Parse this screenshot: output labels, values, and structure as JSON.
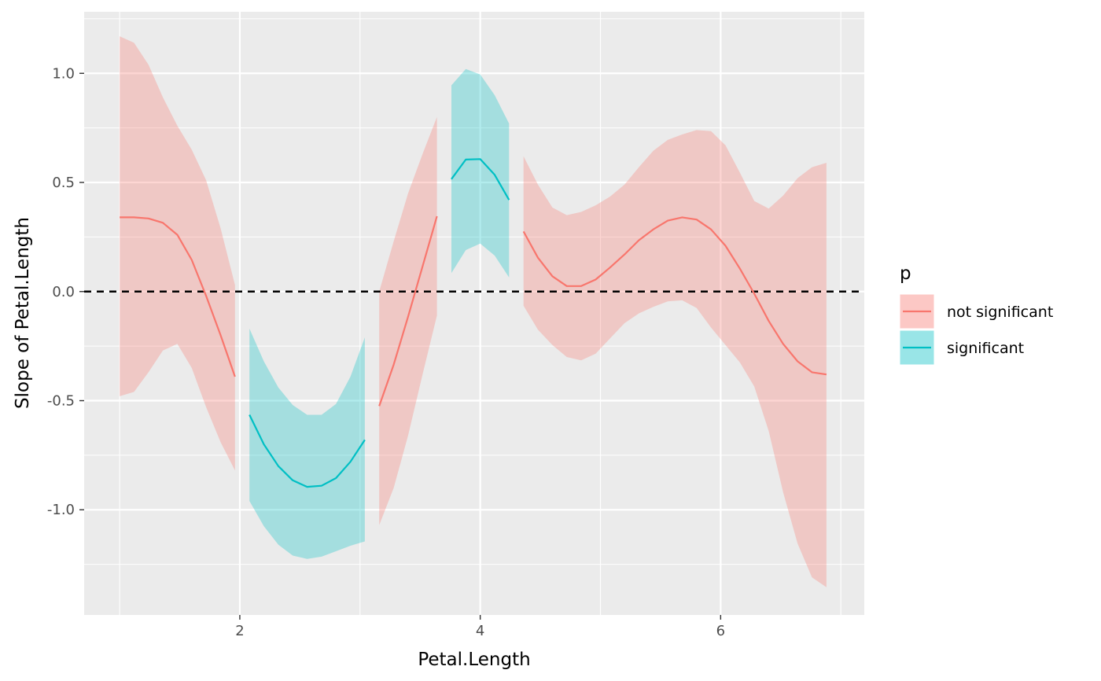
{
  "chart_data": {
    "type": "line",
    "xlabel": "Petal.Length",
    "ylabel": "Slope of Petal.Length",
    "xlim": [
      0.705,
      7.195
    ],
    "ylim": [
      -1.482,
      1.282
    ],
    "x_major_ticks": [
      2,
      4,
      6
    ],
    "x_tick_labels": [
      "2",
      "4",
      "6"
    ],
    "x_minor_ticks": [
      1,
      3,
      5,
      7
    ],
    "y_major_ticks": [
      1.0,
      0.5,
      0.0,
      -0.5,
      -1.0
    ],
    "y_tick_labels": [
      "1.0",
      "0.5",
      "0.0",
      "-0.5",
      "-1.0"
    ],
    "y_minor_ticks": [
      1.25,
      0.75,
      0.25,
      -0.25,
      -0.75,
      -1.25
    ],
    "grid": true,
    "reference_line": {
      "y": 0,
      "style": "dashed",
      "color": "#000000"
    },
    "legend": {
      "title": "p",
      "placement": "right",
      "entries": [
        {
          "label": "not significant",
          "line_color": "#F8766D",
          "fill_color": "#F8766D"
        },
        {
          "label": "significant",
          "line_color": "#00BFC4",
          "fill_color": "#00BFC4"
        }
      ]
    },
    "segments": [
      {
        "group": "not significant",
        "color": "#F8766D",
        "x": [
          1.0,
          1.12,
          1.24,
          1.36,
          1.48,
          1.6,
          1.72,
          1.84,
          1.96
        ],
        "estimate": [
          0.34,
          0.34,
          0.335,
          0.315,
          0.26,
          0.145,
          -0.02,
          -0.2,
          -0.39
        ],
        "upper": [
          1.17,
          1.14,
          1.04,
          0.89,
          0.76,
          0.65,
          0.51,
          0.29,
          0.03
        ],
        "lower": [
          -0.48,
          -0.46,
          -0.37,
          -0.27,
          -0.24,
          -0.35,
          -0.53,
          -0.69,
          -0.82
        ]
      },
      {
        "group": "significant",
        "color": "#00BFC4",
        "x": [
          2.08,
          2.2,
          2.32,
          2.44,
          2.56,
          2.68,
          2.8,
          2.92,
          3.04
        ],
        "estimate": [
          -0.565,
          -0.7,
          -0.8,
          -0.865,
          -0.895,
          -0.89,
          -0.855,
          -0.78,
          -0.68
        ],
        "upper": [
          -0.17,
          -0.32,
          -0.44,
          -0.52,
          -0.565,
          -0.565,
          -0.515,
          -0.39,
          -0.21
        ],
        "lower": [
          -0.96,
          -1.075,
          -1.16,
          -1.21,
          -1.225,
          -1.215,
          -1.19,
          -1.165,
          -1.145
        ]
      },
      {
        "group": "not significant",
        "color": "#F8766D",
        "x": [
          3.16,
          3.28,
          3.4,
          3.52,
          3.64
        ],
        "estimate": [
          -0.525,
          -0.335,
          -0.115,
          0.115,
          0.345
        ],
        "upper": [
          0.0,
          0.23,
          0.45,
          0.63,
          0.8
        ],
        "lower": [
          -1.07,
          -0.9,
          -0.66,
          -0.38,
          -0.11
        ]
      },
      {
        "group": "significant",
        "color": "#00BFC4",
        "x": [
          3.76,
          3.88,
          4.0,
          4.12,
          4.24
        ],
        "estimate": [
          0.515,
          0.605,
          0.607,
          0.535,
          0.42
        ],
        "upper": [
          0.945,
          1.02,
          0.995,
          0.9,
          0.77
        ],
        "lower": [
          0.085,
          0.19,
          0.22,
          0.165,
          0.065
        ]
      },
      {
        "group": "not significant",
        "color": "#F8766D",
        "x": [
          4.36,
          4.48,
          4.6,
          4.72,
          4.84,
          4.96,
          5.08,
          5.2,
          5.32,
          5.44,
          5.56,
          5.68,
          5.8,
          5.92,
          6.04,
          6.16,
          6.28,
          6.4,
          6.52,
          6.64,
          6.76,
          6.88
        ],
        "estimate": [
          0.275,
          0.155,
          0.07,
          0.025,
          0.025,
          0.055,
          0.11,
          0.17,
          0.235,
          0.285,
          0.325,
          0.34,
          0.33,
          0.285,
          0.21,
          0.105,
          -0.01,
          -0.135,
          -0.24,
          -0.32,
          -0.37,
          -0.38
        ],
        "upper": [
          0.62,
          0.49,
          0.385,
          0.35,
          0.365,
          0.395,
          0.435,
          0.49,
          0.57,
          0.645,
          0.695,
          0.72,
          0.74,
          0.735,
          0.67,
          0.545,
          0.415,
          0.38,
          0.44,
          0.52,
          0.57,
          0.59
        ],
        "lower": [
          -0.065,
          -0.175,
          -0.245,
          -0.3,
          -0.315,
          -0.285,
          -0.215,
          -0.145,
          -0.1,
          -0.07,
          -0.045,
          -0.04,
          -0.075,
          -0.165,
          -0.245,
          -0.325,
          -0.435,
          -0.64,
          -0.92,
          -1.155,
          -1.31,
          -1.355
        ]
      }
    ]
  }
}
